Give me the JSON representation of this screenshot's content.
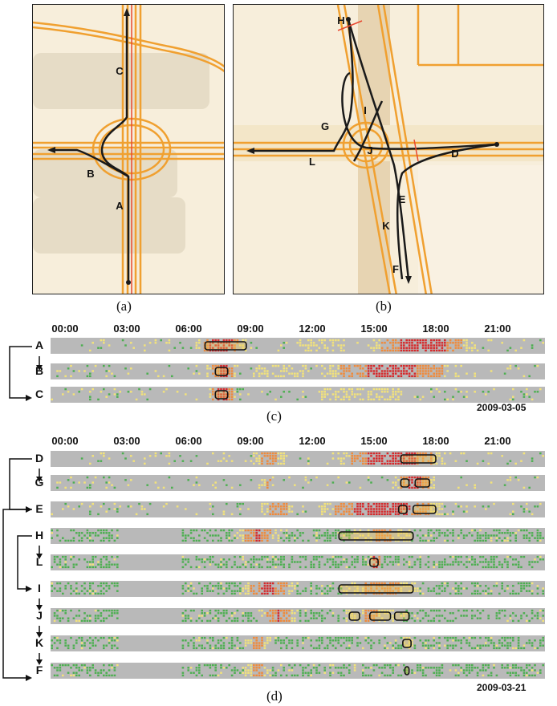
{
  "panels": {
    "a": {
      "caption": "(a)",
      "labels": [
        "C",
        "B",
        "A"
      ]
    },
    "b": {
      "caption": "(b)",
      "labels": [
        "H",
        "I",
        "G",
        "J",
        "L",
        "D",
        "E",
        "K",
        "F"
      ]
    }
  },
  "panel_c": {
    "caption": "(c)",
    "date": "2009-03-05",
    "time_ticks": [
      "00:00",
      "03:00",
      "06:00",
      "09:00",
      "12:00",
      "15:00",
      "18:00",
      "21:00"
    ],
    "rows": [
      {
        "label": "A",
        "selections": [
          [
            7.5,
            9.5
          ]
        ]
      },
      {
        "label": "B",
        "selections": [
          [
            8.0,
            8.6
          ]
        ]
      },
      {
        "label": "C",
        "selections": [
          [
            8.0,
            8.6
          ]
        ]
      }
    ]
  },
  "panel_d": {
    "caption": "(d)",
    "date": "2009-03-21",
    "time_ticks": [
      "00:00",
      "03:00",
      "06:00",
      "09:00",
      "12:00",
      "15:00",
      "18:00",
      "21:00"
    ],
    "rows": [
      {
        "label": "D",
        "selections": [
          [
            17.0,
            18.7
          ]
        ]
      },
      {
        "label": "G",
        "selections": [
          [
            17.0,
            17.4
          ],
          [
            17.7,
            18.4
          ]
        ]
      },
      {
        "label": "E",
        "selections": [
          [
            16.9,
            17.3
          ],
          [
            17.6,
            18.7
          ]
        ]
      },
      {
        "label": "H",
        "selections": [
          [
            14.0,
            17.6
          ]
        ]
      },
      {
        "label": "L",
        "selections": [
          [
            15.5,
            15.9
          ]
        ]
      },
      {
        "label": "I",
        "selections": [
          [
            14.0,
            17.6
          ]
        ]
      },
      {
        "label": "J",
        "selections": [
          [
            14.5,
            15.0
          ],
          [
            15.5,
            16.5
          ],
          [
            16.7,
            17.4
          ]
        ]
      },
      {
        "label": "K",
        "selections": [
          [
            17.1,
            17.5
          ]
        ]
      },
      {
        "label": "F",
        "selections": [
          [
            17.2,
            17.4
          ]
        ]
      }
    ]
  },
  "colors": {
    "road": "#f0a030",
    "road_center": "#e84830",
    "route": "#1a1a1a",
    "heat_bg": "#b9b9b9",
    "green": "#4caf50",
    "yellow": "#f3e37a",
    "orange": "#f08a3a",
    "red": "#d6282a"
  }
}
